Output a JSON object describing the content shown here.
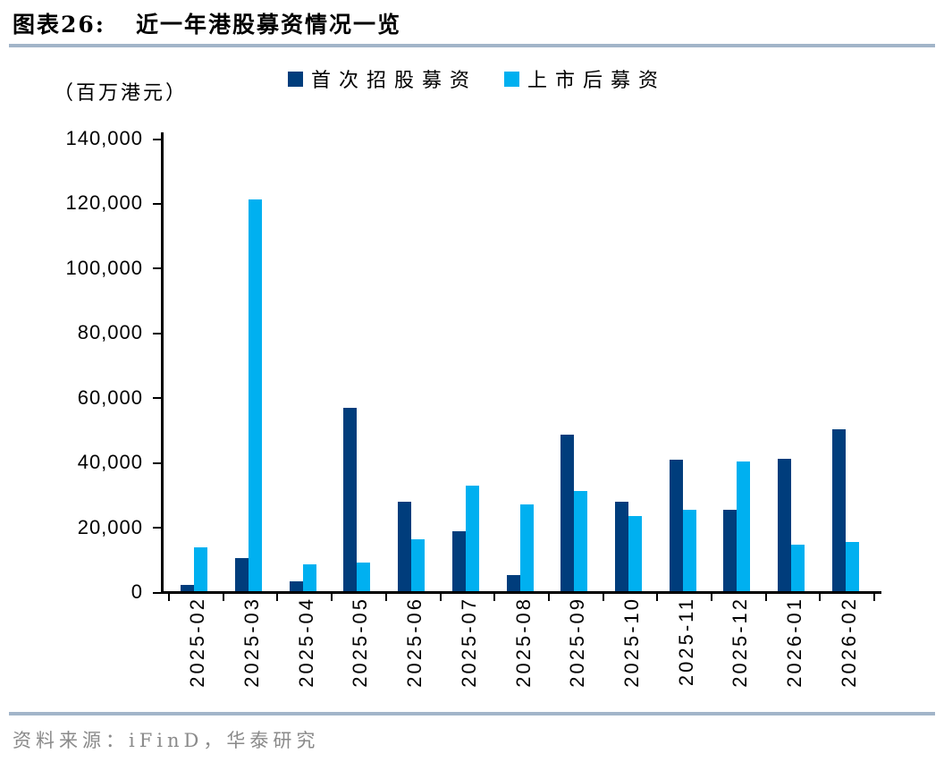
{
  "header": {
    "label": "图表26:",
    "title": "近一年港股募资情况一览"
  },
  "chart_data": {
    "type": "bar",
    "title": "近一年港股募资情况一览",
    "unit_label": "（百万港元）",
    "categories": [
      "2025-02",
      "2025-03",
      "2025-04",
      "2025-05",
      "2025-06",
      "2025-07",
      "2025-08",
      "2025-09",
      "2025-10",
      "2025-11",
      "2025-12",
      "2026-01",
      "2026-02"
    ],
    "series": [
      {
        "name": "首次招股募资",
        "color": "#003d7c",
        "values": [
          1900,
          10300,
          2900,
          56500,
          27500,
          18500,
          5100,
          48300,
          27500,
          40700,
          25000,
          40800,
          49900
        ]
      },
      {
        "name": "上市后募资",
        "color": "#00b0f0",
        "values": [
          13500,
          121000,
          8400,
          8700,
          16000,
          32500,
          26800,
          30900,
          23300,
          25100,
          40000,
          14300,
          15200
        ]
      }
    ],
    "ylim": [
      0,
      140000
    ],
    "ytick_step": 20000,
    "ytick_labels": [
      "0",
      "20,000",
      "40,000",
      "60,000",
      "80,000",
      "100,000",
      "120,000",
      "140,000"
    ],
    "legend_position": "top",
    "grid": false,
    "xlabel": "",
    "ylabel": ""
  },
  "footer": {
    "source": "资料来源：iFinD，华泰研究"
  },
  "colors": {
    "divider": "#a2b5c9",
    "axis": "#000000",
    "source_text": "#8a8a8a"
  }
}
